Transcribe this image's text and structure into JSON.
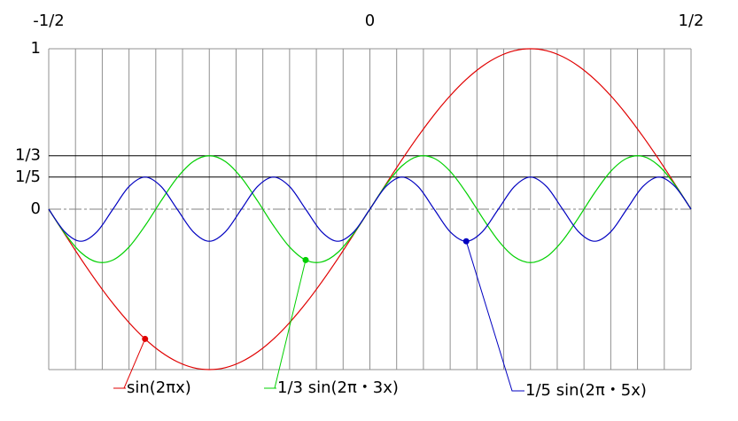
{
  "chart_data": {
    "type": "line",
    "x": [
      -0.5,
      -0.475,
      -0.45,
      -0.425,
      -0.4,
      -0.375,
      -0.35,
      -0.325,
      -0.3,
      -0.275,
      -0.25,
      -0.225,
      -0.2,
      -0.175,
      -0.15,
      -0.125,
      -0.1,
      -0.075,
      -0.05,
      -0.025,
      0,
      0.025,
      0.05,
      0.075,
      0.1,
      0.125,
      0.15,
      0.175,
      0.2,
      0.225,
      0.25,
      0.275,
      0.3,
      0.325,
      0.35,
      0.375,
      0.4,
      0.425,
      0.45,
      0.475,
      0.5
    ],
    "series": [
      {
        "name": "sin(2πx)",
        "color": "#e00000",
        "values": [
          0,
          -0.156,
          -0.309,
          -0.454,
          -0.588,
          -0.707,
          -0.809,
          -0.891,
          -0.951,
          -0.988,
          -1,
          -0.988,
          -0.951,
          -0.891,
          -0.809,
          -0.707,
          -0.588,
          -0.454,
          -0.309,
          -0.156,
          0,
          0.156,
          0.309,
          0.454,
          0.588,
          0.707,
          0.809,
          0.891,
          0.951,
          0.988,
          1,
          0.988,
          0.951,
          0.891,
          0.809,
          0.707,
          0.588,
          0.454,
          0.309,
          0.156,
          0
        ]
      },
      {
        "name": "1/3 sin(2π・3x)",
        "color": "#00d000",
        "values": [
          0,
          -0.151,
          -0.27,
          -0.329,
          -0.317,
          -0.236,
          -0.103,
          0.052,
          0.196,
          0.297,
          0.333,
          0.297,
          0.196,
          0.052,
          -0.103,
          -0.236,
          -0.317,
          -0.329,
          -0.27,
          -0.151,
          0,
          0.151,
          0.27,
          0.329,
          0.317,
          0.236,
          0.103,
          -0.052,
          -0.196,
          -0.297,
          -0.333,
          -0.297,
          -0.196,
          -0.052,
          0.103,
          0.236,
          0.317,
          0.329,
          0.27,
          0.151,
          0
        ]
      },
      {
        "name": "1/5 sin(2π・5x)",
        "color": "#0000c0",
        "values": [
          0,
          -0.141,
          -0.2,
          -0.141,
          0,
          0.141,
          0.2,
          0.141,
          0,
          -0.141,
          -0.2,
          -0.141,
          0,
          0.141,
          0.2,
          0.141,
          0,
          -0.141,
          -0.2,
          -0.141,
          0,
          0.141,
          0.2,
          0.141,
          0,
          -0.141,
          -0.2,
          -0.141,
          0,
          0.141,
          0.2,
          0.141,
          0,
          -0.141,
          -0.2,
          -0.141,
          0,
          0.141,
          0.2,
          0.141,
          0
        ]
      }
    ],
    "xlim": [
      -0.5,
      0.5
    ],
    "xticks": [
      {
        "value": -0.5,
        "label": "-1/2"
      },
      0,
      {
        "value": 0.5,
        "label": "1/2"
      }
    ],
    "xgrid_divisions": 24,
    "ylim": [
      -1,
      1
    ],
    "yticks": [
      1,
      {
        "value": 0.333,
        "label": "1/3"
      },
      {
        "value": 0.2,
        "label": "1/5"
      },
      0
    ]
  }
}
